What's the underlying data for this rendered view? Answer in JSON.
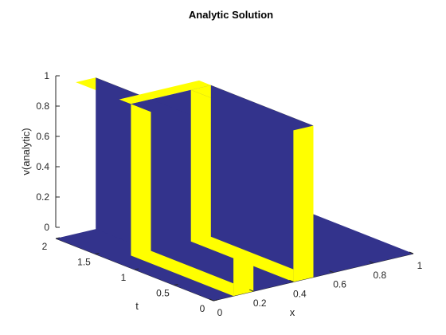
{
  "chart_data": {
    "type": "surface",
    "title": "Analytic Solution",
    "xlabel": "x",
    "ylabel": "t",
    "zlabel": "v(analytic)",
    "xlim": [
      0,
      1
    ],
    "ylim": [
      0,
      2
    ],
    "zlim": [
      0,
      1
    ],
    "x_ticks": [
      "0",
      "0.2",
      "0.4",
      "0.6",
      "0.8",
      "1"
    ],
    "y_ticks": [
      "0",
      "0.5",
      "1",
      "1.5",
      "2"
    ],
    "z_ticks": [
      "0",
      "0.2",
      "0.4",
      "0.6",
      "0.8",
      "1"
    ],
    "colors": {
      "low": "#33338c",
      "high": "#ffff00",
      "axis": "#262626"
    },
    "walls": [
      {
        "name": "wall-back",
        "x": [
          0.1,
          0.2
        ],
        "t": [
          0.0,
          2.0
        ],
        "v": 1
      },
      {
        "name": "wall-front",
        "x": [
          0.4,
          0.5
        ],
        "t": [
          0.0,
          2.0
        ],
        "v": 1
      },
      {
        "name": "wall-side",
        "x": [
          0.1,
          0.5
        ],
        "t": [
          1.3,
          1.45
        ],
        "v": 1
      }
    ]
  }
}
